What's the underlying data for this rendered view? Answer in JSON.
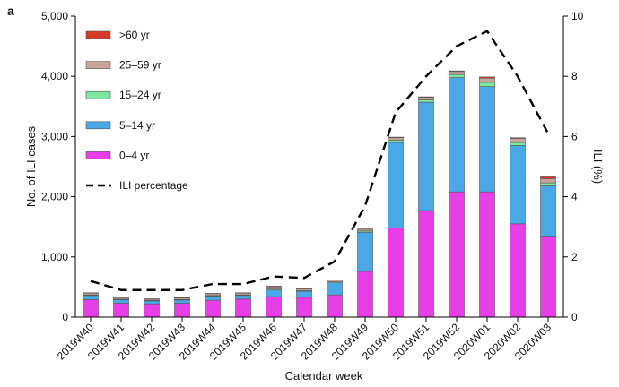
{
  "chart_data": {
    "type": "bar",
    "panel_label": "a",
    "xlabel": "Calendar week",
    "ylabel": "No. of ILI cases",
    "y2label": "ILI (%)",
    "ylim": [
      0,
      5000
    ],
    "y2lim": [
      0,
      10
    ],
    "yticks": [
      0,
      1000,
      2000,
      3000,
      4000,
      5000
    ],
    "yticklabels": [
      "0",
      "1,000",
      "2,000",
      "3,000",
      "4,000",
      "5,000"
    ],
    "y2ticks": [
      0,
      2,
      4,
      6,
      8,
      10
    ],
    "y2ticklabels": [
      "0",
      "2",
      "4",
      "6",
      "8",
      "10"
    ],
    "categories": [
      "2019W40",
      "2019W41",
      "2019W42",
      "2019W43",
      "2019W44",
      "2019W45",
      "2019W46",
      "2019W47",
      "2019W48",
      "2019W49",
      "2019W50",
      "2019W51",
      "2019W52",
      "2020W01",
      "2020W02",
      "2020W03"
    ],
    "series": [
      {
        "name": "0–4 yr",
        "color": "#e83ee8",
        "values": [
          290,
          230,
          220,
          230,
          280,
          300,
          340,
          330,
          370,
          760,
          1480,
          1770,
          2080,
          2080,
          1550,
          1330
        ]
      },
      {
        "name": "5–14 yr",
        "color": "#4aa8e6",
        "values": [
          70,
          60,
          50,
          55,
          70,
          60,
          110,
          100,
          200,
          650,
          1420,
          1800,
          1900,
          1750,
          1300,
          850
        ]
      },
      {
        "name": "15–24 yr",
        "color": "#7de8a0",
        "values": [
          10,
          10,
          10,
          10,
          10,
          10,
          15,
          10,
          15,
          20,
          40,
          40,
          50,
          70,
          50,
          50
        ]
      },
      {
        "name": "25–59 yr",
        "color": "#c8a49a",
        "values": [
          30,
          25,
          20,
          25,
          30,
          30,
          40,
          30,
          30,
          30,
          40,
          40,
          50,
          70,
          70,
          70
        ]
      },
      {
        "name": ">60 yr",
        "color": "#d83a2a",
        "values": [
          5,
          5,
          5,
          5,
          5,
          5,
          10,
          5,
          5,
          5,
          10,
          10,
          10,
          20,
          10,
          30
        ]
      }
    ],
    "line": {
      "name": "ILI percentage",
      "values": [
        1.2,
        0.9,
        0.9,
        0.9,
        1.1,
        1.1,
        1.35,
        1.3,
        1.85,
        3.7,
        6.8,
        8.0,
        9.0,
        9.5,
        8.0,
        6.1
      ]
    },
    "legend_order": [
      ">60 yr",
      "25–59 yr",
      "15–24 yr",
      "5–14 yr",
      "0–4 yr",
      "ILI percentage"
    ],
    "legend_position": "top-left"
  }
}
